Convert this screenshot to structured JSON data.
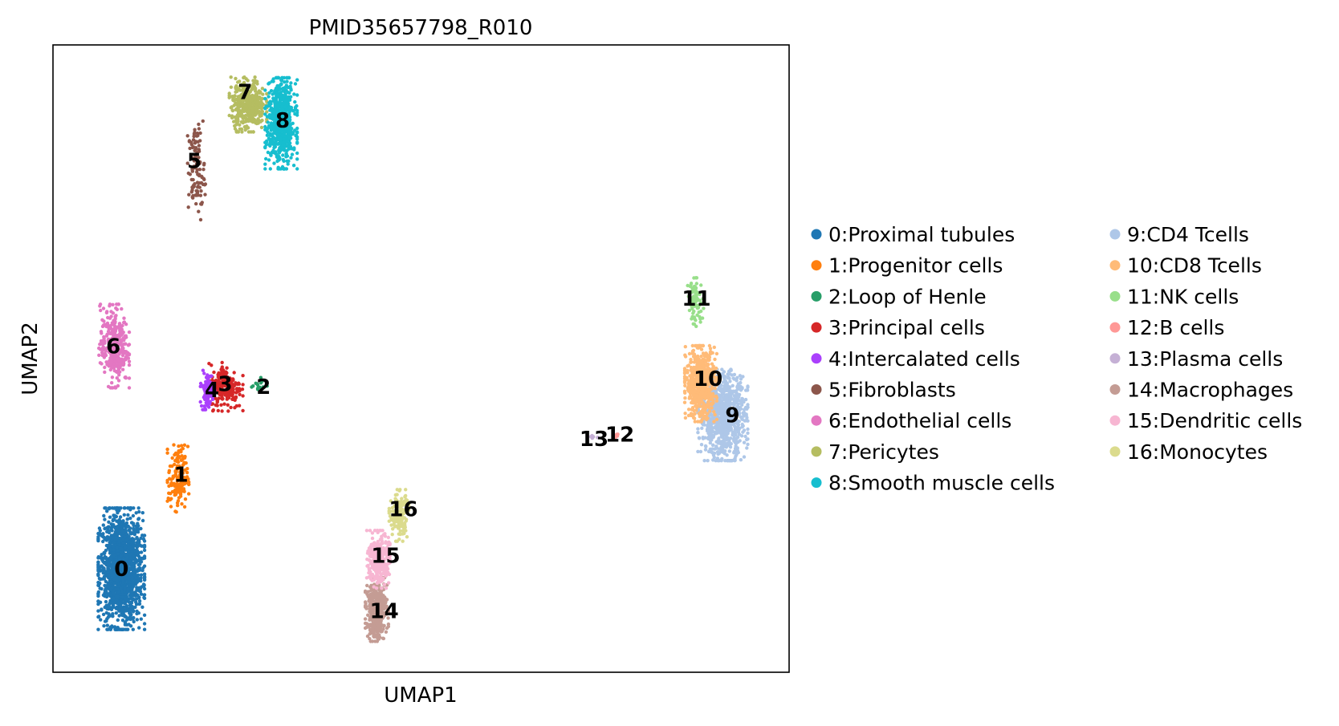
{
  "chart_data": {
    "type": "scatter",
    "title": "PMID35657798_R010",
    "xlabel": "UMAP1",
    "ylabel": "UMAP2",
    "xlim": [
      0,
      100
    ],
    "ylim": [
      0,
      100
    ],
    "grid": false,
    "legend_placement": "right",
    "legend_columns": 2,
    "clusters": [
      {
        "id": "0",
        "name": "0:Proximal tubules",
        "color": "#1f77b4",
        "cx": 9.3,
        "cy": 16.5,
        "count": 1500
      },
      {
        "id": "1",
        "name": "1:Progenitor cells",
        "color": "#ff7f0e",
        "cx": 17.0,
        "cy": 31.0,
        "count": 160
      },
      {
        "id": "2",
        "name": "2:Loop of Henle",
        "color": "#279e68",
        "cx": 28.0,
        "cy": 45.8,
        "count": 14
      },
      {
        "id": "3",
        "name": "3:Principal cells",
        "color": "#d62728",
        "cx": 23.5,
        "cy": 45.5,
        "count": 200
      },
      {
        "id": "4",
        "name": "4:Intercalated cells",
        "color": "#aa40fc",
        "cx": 21.0,
        "cy": 45.0,
        "count": 110
      },
      {
        "id": "5",
        "name": "5:Fibroblasts",
        "color": "#8c564b",
        "cx": 19.5,
        "cy": 80.0,
        "count": 110
      },
      {
        "id": "6",
        "name": "6:Endothelial cells",
        "color": "#e377c2",
        "cx": 8.3,
        "cy": 52.0,
        "count": 330
      },
      {
        "id": "7",
        "name": "7:Pericytes",
        "color": "#b5bd61",
        "cx": 26.5,
        "cy": 90.5,
        "count": 380
      },
      {
        "id": "8",
        "name": "8:Smooth muscle cells",
        "color": "#17becf",
        "cx": 31.0,
        "cy": 87.5,
        "count": 650
      },
      {
        "id": "9",
        "name": "9:CD4 Tcells",
        "color": "#aec7e8",
        "cx": 91.0,
        "cy": 41.0,
        "count": 900
      },
      {
        "id": "10",
        "name": "10:CD8 Tcells",
        "color": "#ffbb78",
        "cx": 88.0,
        "cy": 46.0,
        "count": 600
      },
      {
        "id": "11",
        "name": "11:NK cells",
        "color": "#98df8a",
        "cx": 87.3,
        "cy": 59.0,
        "count": 80
      },
      {
        "id": "12",
        "name": "12:B cells",
        "color": "#ff9896",
        "cx": 76.5,
        "cy": 37.8,
        "count": 6
      },
      {
        "id": "13",
        "name": "13:Plasma cells",
        "color": "#c5b0d5",
        "cx": 73.5,
        "cy": 37.5,
        "count": 5
      },
      {
        "id": "14",
        "name": "14:Macrophages",
        "color": "#c49c94",
        "cx": 44.0,
        "cy": 10.0,
        "count": 400
      },
      {
        "id": "15",
        "name": "15:Dendritic cells",
        "color": "#f7b6d2",
        "cx": 44.2,
        "cy": 18.0,
        "count": 300
      },
      {
        "id": "16",
        "name": "16:Monocytes",
        "color": "#dbdb8d",
        "cx": 47.0,
        "cy": 25.0,
        "count": 160
      }
    ],
    "cluster_labels": [
      {
        "text": "0",
        "x": 9.3,
        "y": 16.5
      },
      {
        "text": "1",
        "x": 17.4,
        "y": 31.5
      },
      {
        "text": "2",
        "x": 28.6,
        "y": 45.5
      },
      {
        "text": "3",
        "x": 23.4,
        "y": 46.0
      },
      {
        "text": "4",
        "x": 21.6,
        "y": 45.0
      },
      {
        "text": "5",
        "x": 19.2,
        "y": 81.5
      },
      {
        "text": "6",
        "x": 8.2,
        "y": 52.0
      },
      {
        "text": "7",
        "x": 26.1,
        "y": 92.5
      },
      {
        "text": "8",
        "x": 31.2,
        "y": 88.0
      },
      {
        "text": "9",
        "x": 92.3,
        "y": 41.0
      },
      {
        "text": "10",
        "x": 89.0,
        "y": 46.8
      },
      {
        "text": "11",
        "x": 87.4,
        "y": 59.6
      },
      {
        "text": "12",
        "x": 77.0,
        "y": 37.9
      },
      {
        "text": "13",
        "x": 73.5,
        "y": 37.2
      },
      {
        "text": "14",
        "x": 45.0,
        "y": 9.8
      },
      {
        "text": "15",
        "x": 45.2,
        "y": 18.6
      },
      {
        "text": "16",
        "x": 47.6,
        "y": 26.0
      }
    ]
  }
}
